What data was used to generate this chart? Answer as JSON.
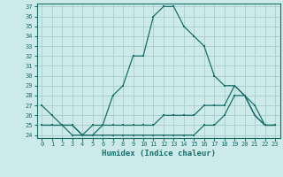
{
  "xlabel": "Humidex (Indice chaleur)",
  "background_color": "#cceaea",
  "grid_color": "#aacccc",
  "line_color": "#1a6e6a",
  "x": [
    0,
    1,
    2,
    3,
    4,
    5,
    6,
    7,
    8,
    9,
    10,
    11,
    12,
    13,
    14,
    15,
    16,
    17,
    18,
    19,
    20,
    21,
    22,
    23
  ],
  "line1": [
    27,
    26,
    25,
    25,
    24,
    25,
    25,
    28,
    29,
    32,
    32,
    36,
    37,
    37,
    35,
    34,
    33,
    30,
    29,
    29,
    28,
    26,
    25,
    25
  ],
  "line2": [
    25,
    25,
    25,
    25,
    24,
    24,
    25,
    25,
    25,
    25,
    25,
    25,
    26,
    26,
    26,
    26,
    27,
    27,
    27,
    29,
    28,
    26,
    25,
    25
  ],
  "line3": [
    25,
    25,
    25,
    24,
    24,
    24,
    24,
    24,
    24,
    24,
    24,
    24,
    24,
    24,
    24,
    24,
    25,
    25,
    26,
    28,
    28,
    27,
    25,
    25
  ],
  "ylim_min": 24,
  "ylim_max": 37,
  "yticks": [
    24,
    25,
    26,
    27,
    28,
    29,
    30,
    31,
    32,
    33,
    34,
    35,
    36,
    37
  ],
  "xlim_min": 0,
  "xlim_max": 23
}
